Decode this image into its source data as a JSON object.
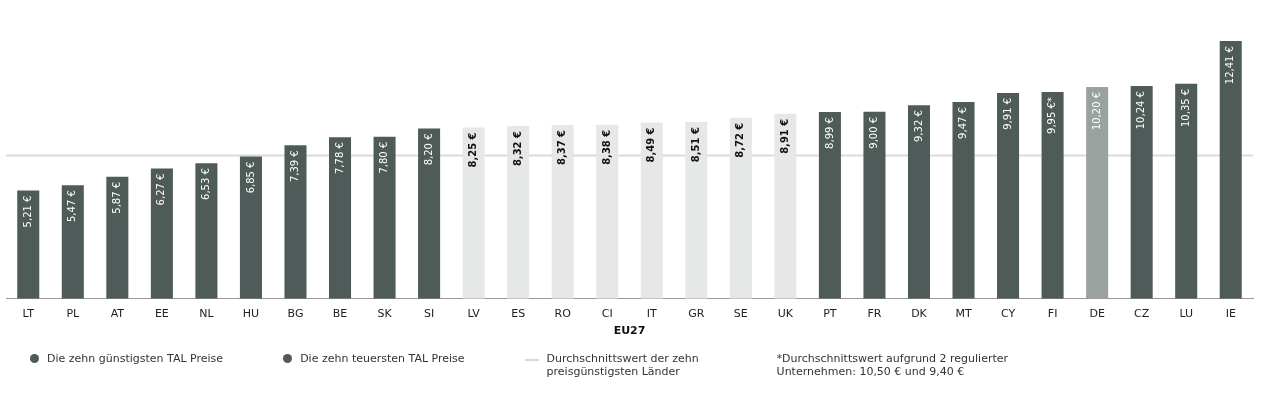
{
  "chart_data": {
    "type": "bar",
    "categories": [
      "LT",
      "PL",
      "AT",
      "EE",
      "NL",
      "HU",
      "BG",
      "BE",
      "SK",
      "SI",
      "LV",
      "ES",
      "RO",
      "CI",
      "IT",
      "GR",
      "SE",
      "UK",
      "PT",
      "FR",
      "DK",
      "MT",
      "CY",
      "FI",
      "DE",
      "CZ",
      "LU",
      "IE"
    ],
    "series": [
      {
        "name": "Die zehn günstigsten TAL Preise",
        "color": "#4f5b58",
        "values": [
          5.21,
          5.47,
          5.87,
          6.27,
          6.53,
          6.85,
          7.39,
          7.78,
          7.8,
          8.2,
          null,
          null,
          null,
          null,
          null,
          null,
          null,
          null,
          null,
          null,
          null,
          null,
          null,
          null,
          null,
          null,
          null,
          null
        ],
        "value_labels": [
          "5,21 €",
          "5,47 €",
          "5,87 €",
          "6,27 €",
          "6,53 €",
          "6,85 €",
          "7,39 €",
          "7,78 €",
          "7,80 €",
          "8,20 €",
          null,
          null,
          null,
          null,
          null,
          null,
          null,
          null,
          null,
          null,
          null,
          null,
          null,
          null,
          null,
          null,
          null,
          null
        ]
      },
      {
        "color": "#e6e8e7",
        "values": [
          null,
          null,
          null,
          null,
          null,
          null,
          null,
          null,
          null,
          null,
          8.25,
          8.32,
          8.37,
          8.38,
          8.49,
          8.51,
          8.72,
          8.91,
          null,
          null,
          null,
          null,
          null,
          null,
          null,
          null,
          null,
          null
        ],
        "value_labels": [
          null,
          null,
          null,
          null,
          null,
          null,
          null,
          null,
          null,
          null,
          "8,25 €",
          "8,32 €",
          "8,37 €",
          "8,38 €",
          "8,49 €",
          "8,51 €",
          "8,72 €",
          "8,91 €",
          null,
          null,
          null,
          null,
          null,
          null,
          null,
          null,
          null,
          null
        ]
      },
      {
        "name": "Die zehn teuersten TAL Preise",
        "color": "#4f5b58",
        "colors": [
          "#4f5b58",
          "#4f5b58",
          "#4f5b58",
          "#4f5b58",
          "#4f5b58",
          "#4f5b58",
          "#4f5b58",
          "#4f5b58",
          "#4f5b58",
          "#4f5b58",
          "#4f5b58",
          "#4f5b58",
          "#4f5b58",
          "#4f5b58",
          "#4f5b58",
          "#4f5b58",
          "#4f5b58",
          "#4f5b58",
          "#4f5b58",
          "#4f5b58",
          "#4f5b58",
          "#4f5b58",
          "#4f5b58",
          "#4f5b58",
          "#9aa29f",
          "#4f5b58",
          "#4f5b58",
          "#4f5b58"
        ],
        "values": [
          null,
          null,
          null,
          null,
          null,
          null,
          null,
          null,
          null,
          null,
          null,
          null,
          null,
          null,
          null,
          null,
          null,
          null,
          8.99,
          9.0,
          9.32,
          9.47,
          9.91,
          9.95,
          10.2,
          10.24,
          10.35,
          12.41
        ],
        "value_labels": [
          null,
          null,
          null,
          null,
          null,
          null,
          null,
          null,
          null,
          null,
          null,
          null,
          null,
          null,
          null,
          null,
          null,
          null,
          "8,99 €",
          "9,00 €",
          "9,32 €",
          "9,47 €",
          "9,91 €",
          "9,95 €*",
          "10,20 €",
          "10,24 €",
          "10,35 €",
          "12,41 €"
        ]
      }
    ],
    "tick_labels": "x",
    "grid": false,
    "legend": "bottom",
    "ref_lines": [
      {
        "axis": "y",
        "value": 6.9,
        "label": "Durchschnittswert der zehn preisgünstigsten Länder",
        "color": "#d9dbda"
      }
    ],
    "annotations": [
      "EU27",
      "*Durchschnittswert aufgrund 2 regulierter Unternehmen: 10,50 € und 9,40 €"
    ]
  }
}
